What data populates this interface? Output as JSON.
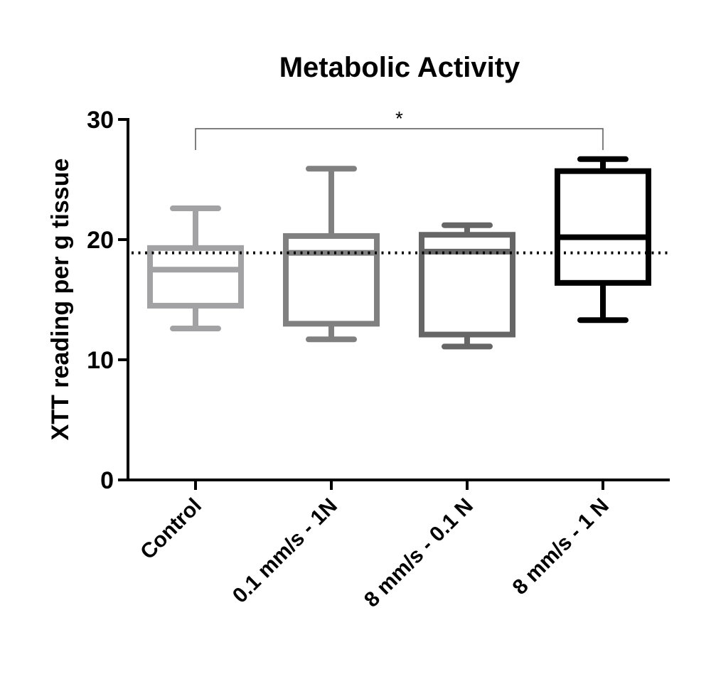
{
  "chart_data": {
    "type": "box",
    "title": "Metabolic Activity",
    "xlabel": "",
    "ylabel": "XTT reading per g tissue",
    "ylim": [
      0,
      30
    ],
    "yticks": [
      0,
      10,
      20,
      30
    ],
    "categories": [
      "Control",
      "0.1 mm/s - 1N",
      "8 mm/s - 0.1 N",
      "8 mm/s - 1 N"
    ],
    "colors": [
      "#a2a2a5",
      "#808080",
      "#666666",
      "#000000"
    ],
    "boxes": [
      {
        "min": 12.6,
        "q1": 14.5,
        "median": 17.5,
        "q3": 19.3,
        "max": 22.6
      },
      {
        "min": 11.7,
        "q1": 13.0,
        "median": 18.9,
        "q3": 20.3,
        "max": 25.9
      },
      {
        "min": 11.1,
        "q1": 12.1,
        "median": 19.0,
        "q3": 20.4,
        "max": 21.2
      },
      {
        "min": 13.3,
        "q1": 16.4,
        "median": 20.2,
        "q3": 25.7,
        "max": 26.7
      }
    ],
    "reference_line": 18.9,
    "significance": {
      "from": 0,
      "to": 3,
      "label": "*"
    },
    "grid": false
  }
}
